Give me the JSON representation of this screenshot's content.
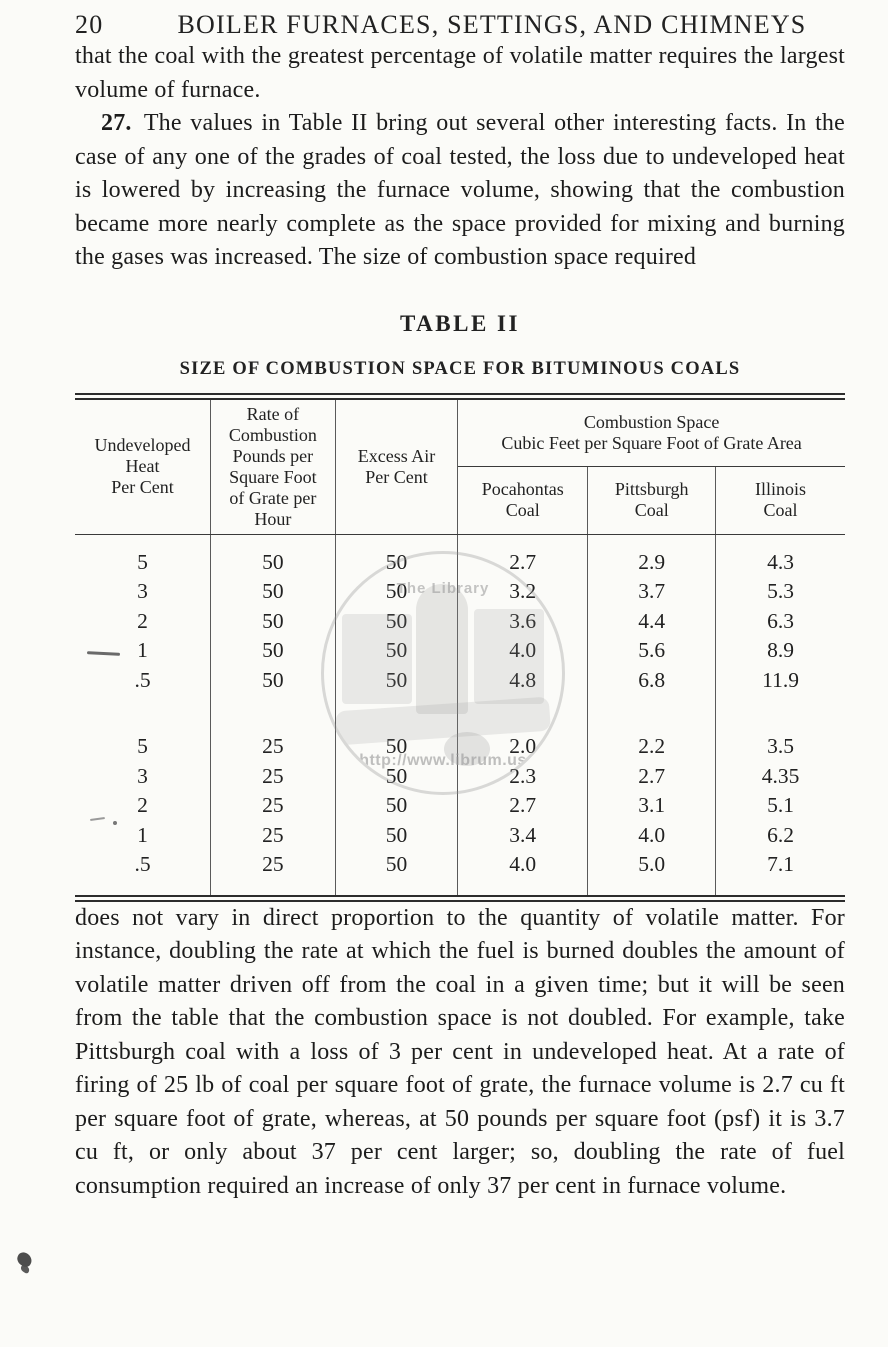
{
  "page": {
    "number": "20",
    "running_title": "BOILER FURNACES, SETTINGS, AND CHIMNEYS"
  },
  "paragraphs": {
    "p1": "that the coal with the greatest percentage of volatile matter requires the largest volume of furnace.",
    "p2_number": "27.",
    "p2": "The values in Table II bring out several other interesting facts.  In the case of any one of the grades of coal tested, the loss due to undeveloped heat is lowered by increasing the furnace volume, showing that the combustion became more nearly complete as the space provided for mixing and burning the gases was increased.   The size of combustion space required",
    "p3": "does not vary in direct proportion to the quantity of volatile matter.  For instance, doubling the rate at which the fuel is burned doubles the amount of volatile matter driven off from the coal in a given time; but it will be seen from the table that the combustion space is not doubled.  For example, take Pittsburgh coal with a loss of 3 per cent in undeveloped heat. At a rate of firing of 25 lb of coal per square foot of grate, the furnace volume is 2.7 cu ft per square foot of grate, whereas, at 50 pounds per square foot (psf) it is 3.7 cu ft, or only about 37 per cent larger; so, doubling the rate of fuel consumption required an increase of only 37 per cent in furnace volume."
  },
  "table": {
    "title": "TABLE II",
    "subtitle": "SIZE OF COMBUSTION SPACE FOR BITUMINOUS COALS",
    "header": {
      "undeveloped_heat": "Undeveloped\nHeat\nPer Cent",
      "rate_of_combustion": "Rate of\nCombustion\nPounds per\nSquare Foot\nof Grate per\nHour",
      "excess_air": "Excess Air\nPer Cent",
      "combustion_space_group": "Combustion Space\nCubic Feet per Square Foot of Grate Area",
      "pocahontas": "Pocahontas\nCoal",
      "pittsburgh": "Pittsburgh\nCoal",
      "illinois": "Illinois\nCoal"
    },
    "rows": [
      [
        "5",
        "50",
        "50",
        "2.7",
        "2.9",
        "4.3"
      ],
      [
        "3",
        "50",
        "50",
        "3.2",
        "3.7",
        "5.3"
      ],
      [
        "2",
        "50",
        "50",
        "3.6",
        "4.4",
        "6.3"
      ],
      [
        "1",
        "50",
        "50",
        "4.0",
        "5.6",
        "8.9"
      ],
      [
        ".5",
        "50",
        "50",
        "4.8",
        "6.8",
        "11.9"
      ],
      [
        "5",
        "25",
        "50",
        "2.0",
        "2.2",
        "3.5"
      ],
      [
        "3",
        "25",
        "50",
        "2.3",
        "2.7",
        "4.35"
      ],
      [
        "2",
        "25",
        "50",
        "2.7",
        "3.1",
        "5.1"
      ],
      [
        "1",
        "25",
        "50",
        "3.4",
        "4.0",
        "6.2"
      ],
      [
        ".5",
        "25",
        "50",
        "4.0",
        "5.0",
        "7.1"
      ]
    ]
  },
  "watermark": {
    "title": "The Library",
    "url": "http://www.librum.us"
  }
}
